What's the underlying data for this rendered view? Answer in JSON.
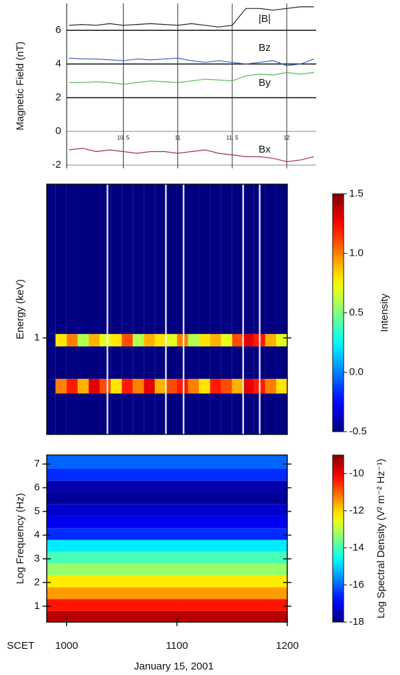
{
  "chart_data": [
    {
      "type": "line",
      "ylabel": "Magnetic Field (nT)",
      "x": [
        10.0,
        10.125,
        10.25,
        10.375,
        10.5,
        10.625,
        10.75,
        10.875,
        11.0,
        11.125,
        11.25,
        11.375,
        11.5,
        11.625,
        11.75,
        11.875,
        12.0,
        12.125,
        12.25
      ],
      "xlim": [
        9.98,
        12.27
      ],
      "xticks": [
        {
          "value": 10.5,
          "label": "10. 5"
        },
        11,
        {
          "value": 11.5,
          "label": "11. 5"
        },
        12
      ],
      "ylim": [
        -2.2,
        7.6
      ],
      "yticks": [
        -2,
        0,
        2,
        4,
        6
      ],
      "grid": true,
      "series": [
        {
          "name": "|B|",
          "color": "#222222",
          "values": [
            6.3,
            6.35,
            6.3,
            6.4,
            6.3,
            6.35,
            6.4,
            6.35,
            6.3,
            6.4,
            6.3,
            6.2,
            6.3,
            7.3,
            7.3,
            7.2,
            7.3,
            7.4,
            7.4
          ]
        },
        {
          "name": "Bz",
          "color": "#3a5fbf",
          "values": [
            4.35,
            4.3,
            4.3,
            4.25,
            4.2,
            4.3,
            4.25,
            4.3,
            4.35,
            4.2,
            4.1,
            4.2,
            4.1,
            4.0,
            4.1,
            4.2,
            3.9,
            4.0,
            4.3
          ]
        },
        {
          "name": "By",
          "color": "#5cb85c",
          "values": [
            2.9,
            2.9,
            2.95,
            2.9,
            2.8,
            2.9,
            3.0,
            2.95,
            2.9,
            3.0,
            3.1,
            3.05,
            3.0,
            3.3,
            3.4,
            3.35,
            3.5,
            3.4,
            3.5
          ]
        },
        {
          "name": "Bx",
          "color": "#a03040",
          "values": [
            -1.1,
            -1.0,
            -1.2,
            -1.1,
            -1.2,
            -1.3,
            -1.2,
            -1.2,
            -1.3,
            -1.2,
            -1.1,
            -1.3,
            -1.4,
            -1.5,
            -1.5,
            -1.6,
            -1.8,
            -1.7,
            -1.5
          ]
        }
      ]
    },
    {
      "type": "heatmap",
      "ylabel": "Energy (keV)",
      "zlabel": "Intensity",
      "xlim": [
        982,
        1200
      ],
      "ylim": [
        0.3,
        6.8
      ],
      "log_y": true,
      "yticks": [
        1
      ],
      "x_edges": [
        982,
        990,
        1000,
        1010,
        1020,
        1030,
        1040,
        1050,
        1060,
        1070,
        1080,
        1090,
        1100,
        1110,
        1120,
        1130,
        1140,
        1150,
        1160,
        1170,
        1180,
        1190,
        1200
      ],
      "y_edges": [
        0.3,
        0.5,
        0.6,
        0.9,
        1.05,
        6.8
      ],
      "z": [
        [
          -0.5,
          -0.5,
          -0.5,
          -0.5,
          -0.5,
          -0.5,
          -0.5,
          -0.5,
          -0.5,
          -0.5,
          -0.5,
          -0.5,
          -0.5,
          -0.5,
          -0.5,
          -0.5,
          -0.5,
          -0.5,
          -0.5,
          -0.5,
          -0.5,
          -0.5
        ],
        [
          -0.5,
          1.0,
          1.2,
          0.9,
          1.3,
          1.1,
          0.8,
          1.2,
          1.0,
          1.3,
          0.9,
          1.1,
          1.2,
          1.0,
          0.8,
          1.2,
          1.1,
          0.9,
          1.3,
          1.2,
          1.0,
          0.8
        ],
        [
          -0.5,
          -0.5,
          -0.5,
          -0.5,
          -0.5,
          -0.5,
          -0.5,
          -0.5,
          -0.5,
          -0.5,
          -0.5,
          -0.5,
          -0.5,
          -0.5,
          -0.5,
          -0.5,
          -0.5,
          -0.5,
          -0.5,
          -0.5,
          -0.5,
          -0.5
        ],
        [
          -0.5,
          0.8,
          1.0,
          0.6,
          0.9,
          0.7,
          0.8,
          1.1,
          0.6,
          0.9,
          0.8,
          0.7,
          1.0,
          0.6,
          0.8,
          0.9,
          0.7,
          1.1,
          1.3,
          1.2,
          0.9,
          0.7
        ],
        [
          -0.5,
          -0.5,
          -0.5,
          -0.5,
          -0.5,
          -0.5,
          -0.5,
          -0.5,
          -0.5,
          -0.5,
          -0.5,
          -0.5,
          -0.5,
          -0.5,
          -0.5,
          -0.5,
          -0.5,
          -0.5,
          -0.5,
          -0.5,
          -0.5,
          -0.5
        ]
      ],
      "data_gaps": [
        1037,
        1090,
        1106,
        1160,
        1175
      ],
      "zlim": [
        -0.5,
        1.5
      ],
      "zticks": [
        -0.5,
        {
          "value": 0,
          "label": "0.0"
        },
        0.5,
        {
          "value": 1,
          "label": "1.0"
        },
        1.5
      ]
    },
    {
      "type": "heatmap",
      "ylabel": "Log Frequency (Hz)",
      "zlabel": "Log Spectral Density (V² m⁻² Hz⁻¹)",
      "xlabel": "January 15, 2001",
      "xaxis_name": "SCET",
      "xlim": [
        982,
        1200
      ],
      "xticks": [
        1000,
        1100,
        1200
      ],
      "ylim": [
        0.33,
        7.38
      ],
      "yticks": [
        1,
        2,
        3,
        4,
        5,
        6,
        7
      ],
      "x_edges": [
        982,
        1200
      ],
      "y_edges": [
        0.33,
        0.8,
        1.3,
        1.8,
        2.3,
        2.8,
        3.3,
        3.8,
        4.3,
        4.8,
        5.3,
        5.8,
        6.3,
        6.8,
        7.38
      ],
      "z": [
        [
          -9.5
        ],
        [
          -10.3
        ],
        [
          -11.5
        ],
        [
          -12.2
        ],
        [
          -13.3
        ],
        [
          -14.0
        ],
        [
          -14.8
        ],
        [
          -16.5
        ],
        [
          -17.0
        ],
        [
          -17.3
        ],
        [
          -17.8
        ],
        [
          -17.6
        ],
        [
          -16.5
        ],
        [
          -16.0
        ]
      ],
      "zlim": [
        -18,
        -9
      ],
      "zticks": [
        -18,
        -16,
        -14,
        -12,
        -10
      ]
    }
  ]
}
